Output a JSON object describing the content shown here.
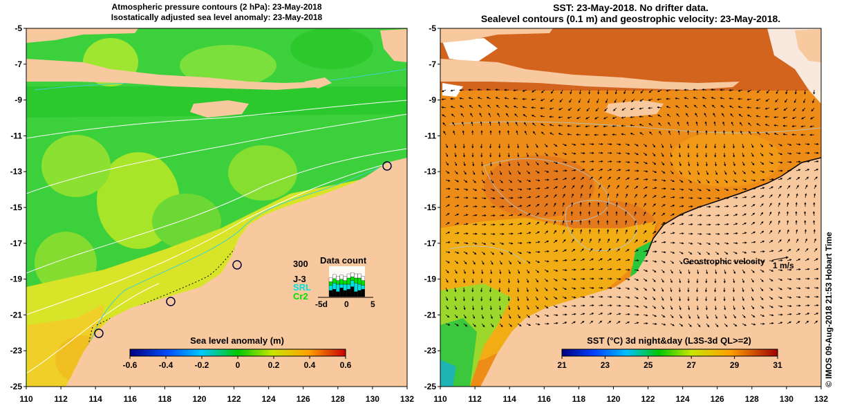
{
  "left_panel": {
    "title_line1": "Atmospheric pressure contours (2 hPa): 23-May-2018",
    "title_line2": "Isostatically adjusted sea level anomaly: 23-May-2018",
    "colorbar_title": "Sea level anomaly (m)",
    "colorbar_ticks": [
      "-0.6",
      "-0.4",
      "-0.2",
      "0",
      "0.2",
      "0.4",
      "0.6"
    ],
    "colors": {
      "land": "#f8c89e",
      "sea_base": "#32d232",
      "positive": "#e8e232",
      "pressure_contour": "#ffffff",
      "coast_contour": "#40d0d0"
    },
    "inset": {
      "title": "Data count",
      "ymax_label": "300",
      "series": [
        "J-3",
        "SRL",
        "Cr2"
      ],
      "series_colors": [
        "#000000",
        "#00e0e0",
        "#00e000"
      ],
      "x_ticks": [
        "-5d",
        "0",
        "5"
      ]
    }
  },
  "right_panel": {
    "title_line1": "SST: 23-May-2018. No drifter data.",
    "title_line2": "Sealevel contours (0.1 m) and geostrophic velocity: 23-May-2018.",
    "velocity_label": "Geostrophic velocity",
    "velocity_scale": "1 m/s",
    "colorbar_title": "SST (°C) 3d night&day (L3S-3d QL>=2)",
    "colorbar_ticks": [
      "21",
      "23",
      "25",
      "27",
      "29",
      "31"
    ],
    "colors": {
      "land": "#f8c89e",
      "sea_warm": "#f08c14",
      "sea_hot": "#c8501e",
      "coastal_cool": "#28c828"
    }
  },
  "axes": {
    "lat_ticks": [
      "-5",
      "-7",
      "-9",
      "-11",
      "-13",
      "-15",
      "-17",
      "-19",
      "-21",
      "-23",
      "-25"
    ],
    "lon_ticks": [
      "110",
      "112",
      "114",
      "116",
      "118",
      "120",
      "122",
      "124",
      "126",
      "128",
      "130",
      "132"
    ]
  },
  "credit": "© IMOS 09-Aug-2018 21:53 Hobart Time"
}
